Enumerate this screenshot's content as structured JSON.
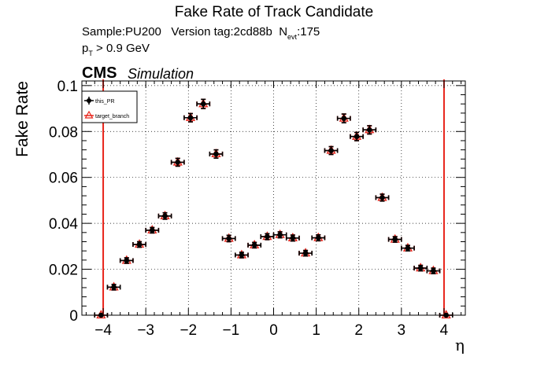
{
  "chart_data": {
    "type": "scatter",
    "title": "Fake Rate of Track Candidate",
    "info": {
      "sample": "Sample:PU200",
      "version": "Version tag:2cd88b",
      "nevt_symbol": "N",
      "nevt_subscript": "evt",
      "nevt_value": ":175",
      "cut_symbol": "p",
      "cut_subscript": "T",
      "cut_value": " > 0.9 GeV"
    },
    "experiment_label": "CMS",
    "experiment_sublabel": "Simulation",
    "xlabel": "η",
    "ylabel": "Fake Rate",
    "xlim": [
      -4.5,
      4.5
    ],
    "ylim": [
      0,
      0.102
    ],
    "xticks": [
      -4,
      -3,
      -2,
      -1,
      0,
      1,
      2,
      3,
      4
    ],
    "xtick_labels": [
      "−4",
      "−3",
      "−2",
      "−1",
      "0",
      "1",
      "2",
      "3",
      "4"
    ],
    "yticks": [
      0,
      0.02,
      0.04,
      0.06,
      0.08,
      0.1
    ],
    "ytick_labels": [
      "0",
      "0.02",
      "0.04",
      "0.06",
      "0.08",
      "0.1"
    ],
    "grid": true,
    "legend_position": "top-left",
    "vertical_lines": [
      -4.0,
      4.0
    ],
    "vertical_line_color": "#e8241a",
    "x_error": 0.15,
    "series": [
      {
        "name": "this_PR",
        "marker": "filled-circle",
        "color": "#000000",
        "x": [
          -4.05,
          -3.75,
          -3.45,
          -3.15,
          -2.85,
          -2.55,
          -2.25,
          -1.95,
          -1.65,
          -1.35,
          -1.05,
          -0.75,
          -0.45,
          -0.15,
          0.15,
          0.45,
          0.75,
          1.05,
          1.35,
          1.65,
          1.95,
          2.25,
          2.55,
          2.85,
          3.15,
          3.45,
          3.75,
          4.05
        ],
        "y": [
          0.0,
          0.0122,
          0.0238,
          0.0308,
          0.037,
          0.0432,
          0.0666,
          0.086,
          0.092,
          0.0702,
          0.0334,
          0.0262,
          0.0305,
          0.0342,
          0.035,
          0.0336,
          0.027,
          0.0337,
          0.0717,
          0.0857,
          0.0778,
          0.0807,
          0.0512,
          0.033,
          0.0292,
          0.0205,
          0.0193,
          0.0
        ],
        "yerr": [
          0.0,
          0.0012,
          0.0012,
          0.0012,
          0.0012,
          0.0014,
          0.0017,
          0.0018,
          0.002,
          0.0018,
          0.0014,
          0.0012,
          0.0012,
          0.0013,
          0.0013,
          0.0013,
          0.0012,
          0.0013,
          0.0017,
          0.0019,
          0.0018,
          0.0018,
          0.0015,
          0.0012,
          0.0012,
          0.0012,
          0.0012,
          0.0
        ]
      },
      {
        "name": "target_branch",
        "marker": "open-triangle",
        "color": "#e8241a",
        "x": [
          -4.05,
          -3.75,
          -3.45,
          -3.15,
          -2.85,
          -2.55,
          -2.25,
          -1.95,
          -1.65,
          -1.35,
          -1.05,
          -0.75,
          -0.45,
          -0.15,
          0.15,
          0.45,
          0.75,
          1.05,
          1.35,
          1.65,
          1.95,
          2.25,
          2.55,
          2.85,
          3.15,
          3.45,
          3.75,
          4.05
        ],
        "y": [
          0.0,
          0.0122,
          0.0238,
          0.0308,
          0.037,
          0.0432,
          0.0666,
          0.086,
          0.092,
          0.0702,
          0.0334,
          0.0262,
          0.0305,
          0.0342,
          0.035,
          0.0336,
          0.027,
          0.0337,
          0.0717,
          0.0857,
          0.0778,
          0.0807,
          0.0512,
          0.033,
          0.0292,
          0.0205,
          0.0193,
          0.0
        ],
        "yerr": [
          0.0,
          0.0012,
          0.0012,
          0.0012,
          0.0012,
          0.0014,
          0.0017,
          0.0018,
          0.002,
          0.0018,
          0.0014,
          0.0012,
          0.0012,
          0.0013,
          0.0013,
          0.0013,
          0.0012,
          0.0013,
          0.0017,
          0.0019,
          0.0018,
          0.0018,
          0.0015,
          0.0012,
          0.0012,
          0.0012,
          0.0012,
          0.0
        ]
      }
    ]
  }
}
